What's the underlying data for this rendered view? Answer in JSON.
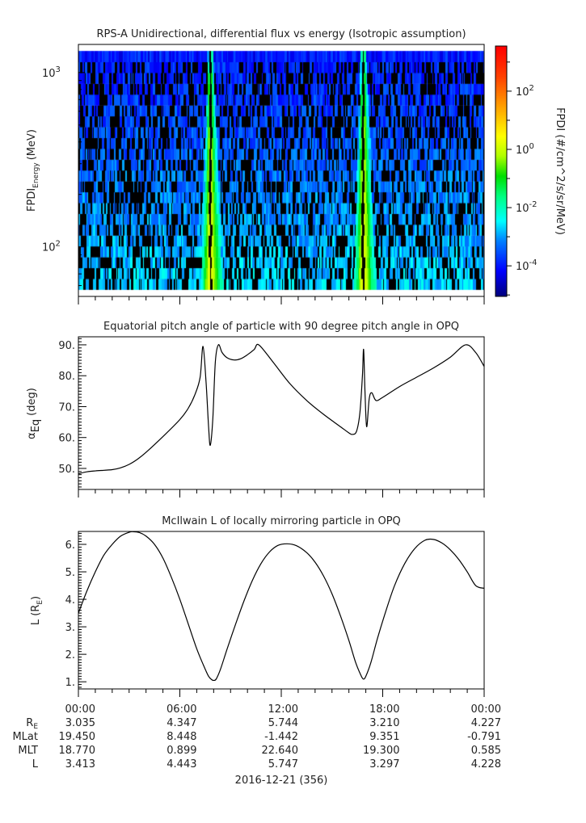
{
  "chart_data": [
    {
      "type": "heatmap",
      "title": "RPS-A Unidirectional, differential flux vs energy (Isotropic assumption)",
      "ylabel_main": "FPDI",
      "ylabel_sub": "Energy",
      "ylabel_unit": "(MeV)",
      "yscale": "log",
      "ylim": [
        52,
        1450
      ],
      "yticks": [
        {
          "value": 100,
          "base": "10",
          "exp": "2"
        },
        {
          "value": 1000,
          "base": "10",
          "exp": "3"
        }
      ],
      "xlim_hours": [
        0,
        24
      ],
      "energy_range_mev": [
        57,
        1330
      ],
      "energy_channels": 22,
      "peak_flux_times_hours": [
        7.8,
        16.85
      ],
      "colorbar": {
        "label": "FPDI (#/cm^2/s/sr/MeV)",
        "scale": "log",
        "range_log10": [
          -5.05,
          3.55
        ],
        "ticks": [
          {
            "base": "10",
            "exp": "2",
            "log": 2
          },
          {
            "base": "10",
            "exp": "0",
            "log": 0
          },
          {
            "base": "10",
            "exp": "-2",
            "log": -2
          },
          {
            "base": "10",
            "exp": "-4",
            "log": -4
          }
        ],
        "colors": [
          "#00007f",
          "#0000ff",
          "#0080ff",
          "#00ffff",
          "#00ff80",
          "#00e000",
          "#b0ff00",
          "#ffff00",
          "#ffa000",
          "#ff4000",
          "#ff0000"
        ]
      }
    },
    {
      "type": "line",
      "title": "Equatorial pitch angle of particle with 90 degree pitch angle in OPQ",
      "ylabel_main": "α",
      "ylabel_sub": "Eq",
      "ylabel_unit": "(deg)",
      "ylim": [
        43.2,
        92.6
      ],
      "yticks": [
        "50.",
        "60.",
        "70.",
        "80.",
        "90."
      ],
      "ytick_values": [
        50,
        60,
        70,
        80,
        90
      ],
      "x_hours": [
        0,
        0.5,
        1,
        2,
        2.5,
        3,
        3.5,
        4,
        5,
        6,
        6.5,
        6.9,
        7.2,
        7.37,
        7.55,
        7.7,
        7.8,
        7.95,
        8.1,
        8.28,
        8.5,
        8.8,
        9.2,
        9.6,
        10,
        10.4,
        10.67,
        11.5,
        12.5,
        13.5,
        14.5,
        15.5,
        16.0,
        16.2,
        16.45,
        16.65,
        16.8,
        16.87,
        16.95,
        17.05,
        17.2,
        17.35,
        17.6,
        18,
        19,
        20,
        21,
        22,
        22.9,
        23.5,
        24
      ],
      "values": [
        48.3,
        48.9,
        49.2,
        49.6,
        50.2,
        51.3,
        53.0,
        55.2,
        60.3,
        65.8,
        69.5,
        74.0,
        79.5,
        89.5,
        78.0,
        63.5,
        57.5,
        66.0,
        84.5,
        90.0,
        87.5,
        85.8,
        85.1,
        85.5,
        86.8,
        88.5,
        90.0,
        84.5,
        77.5,
        72.0,
        67.5,
        63.5,
        61.5,
        61.0,
        62.0,
        68.0,
        80.0,
        88.5,
        75.0,
        63.5,
        72.5,
        74.5,
        72.0,
        73.0,
        76.5,
        79.5,
        82.5,
        86.0,
        90.0,
        87.5,
        83.0
      ]
    },
    {
      "type": "line",
      "title": "McIlwain L of locally mirroring particle in OPQ",
      "ylabel_main": "L (R",
      "ylabel_sub": "E",
      "ylabel_unit": ")",
      "ylim": [
        0.74,
        6.47
      ],
      "yticks": [
        "1.",
        "2.",
        "3.",
        "4.",
        "5.",
        "6."
      ],
      "ytick_values": [
        1,
        2,
        3,
        4,
        5,
        6
      ],
      "x_hours": [
        0,
        0.5,
        1,
        1.5,
        2,
        2.5,
        3,
        3.25,
        3.6,
        4,
        4.5,
        5,
        5.5,
        6,
        6.5,
        7,
        7.4,
        7.7,
        7.9,
        8.0,
        8.15,
        8.4,
        8.8,
        9.3,
        9.8,
        10.3,
        10.8,
        11.3,
        11.8,
        12.35,
        12.9,
        13.5,
        14,
        14.5,
        15,
        15.5,
        16,
        16.4,
        16.7,
        16.85,
        17.0,
        17.3,
        17.7,
        18.2,
        18.7,
        19.3,
        19.9,
        20.5,
        21,
        21.5,
        22,
        22.5,
        23,
        23.5,
        24
      ],
      "values": [
        3.5,
        4.3,
        5.0,
        5.6,
        6.0,
        6.3,
        6.44,
        6.46,
        6.43,
        6.3,
        6.0,
        5.5,
        4.8,
        4.0,
        3.1,
        2.2,
        1.6,
        1.2,
        1.07,
        1.05,
        1.1,
        1.45,
        2.2,
        3.1,
        3.95,
        4.7,
        5.3,
        5.72,
        5.96,
        6.02,
        5.95,
        5.7,
        5.35,
        4.85,
        4.2,
        3.4,
        2.5,
        1.7,
        1.25,
        1.1,
        1.2,
        1.7,
        2.6,
        3.6,
        4.5,
        5.3,
        5.85,
        6.15,
        6.18,
        6.05,
        5.8,
        5.45,
        5.0,
        4.5,
        4.4
      ]
    }
  ],
  "xaxis": {
    "ticks": [
      "00:00",
      "06:00",
      "12:00",
      "18:00",
      "00:00"
    ],
    "date": "2016-12-21 (356)"
  },
  "ephemeris": [
    {
      "label": "R",
      "label_sub": "E",
      "values": [
        "3.035",
        "4.347",
        "5.744",
        "3.210",
        "4.227"
      ]
    },
    {
      "label": "MLat",
      "label_sub": "",
      "values": [
        "19.450",
        "8.448",
        "-1.442",
        "9.351",
        "-0.791"
      ]
    },
    {
      "label": "MLT",
      "label_sub": "",
      "values": [
        "18.770",
        "0.899",
        "22.640",
        "19.300",
        "0.585"
      ]
    },
    {
      "label": "L",
      "label_sub": "",
      "values": [
        "3.413",
        "4.443",
        "5.747",
        "3.297",
        "4.228"
      ]
    }
  ]
}
